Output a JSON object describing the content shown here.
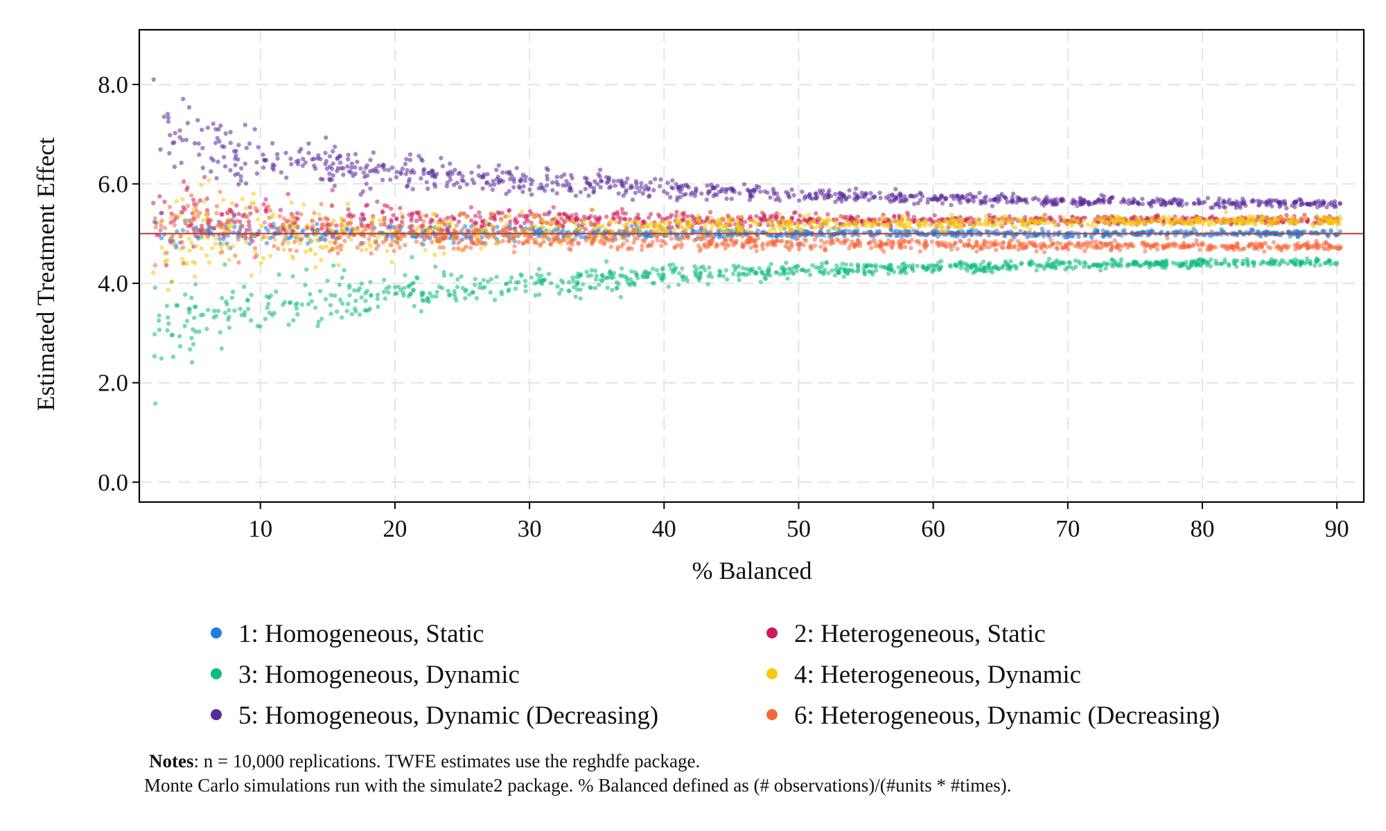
{
  "chart_data": {
    "type": "scatter",
    "title": "",
    "xlabel": "% Balanced",
    "ylabel": "Estimated Treatment Effect",
    "xlim": [
      1,
      92
    ],
    "ylim": [
      -0.4,
      9.1
    ],
    "x_ticks": [
      10,
      20,
      30,
      40,
      50,
      60,
      70,
      80,
      90
    ],
    "x_tick_labels": [
      "10",
      "20",
      "30",
      "40",
      "50",
      "60",
      "70",
      "80",
      "90"
    ],
    "y_ticks": [
      0,
      2,
      4,
      6,
      8
    ],
    "y_tick_labels": [
      "0.0",
      "2.0",
      "4.0",
      "6.0",
      "8.0"
    ],
    "grid": true,
    "reference_line": {
      "y": 5.0,
      "color": "#c0392b"
    },
    "legend_position": "bottom",
    "x_range_of_points": [
      2,
      90.3
    ],
    "series": [
      {
        "name": "1: Homogeneous, Static",
        "color": "#1f7ee0",
        "center_at_x2": 5.0,
        "center_at_x90": 5.0,
        "spread_at_x2": 0.25,
        "spread_at_x90": 0.03
      },
      {
        "name": "2: Heterogeneous, Static",
        "color": "#cf1b5c",
        "center_at_x2": 5.3,
        "center_at_x90": 5.27,
        "spread_at_x2": 0.45,
        "spread_at_x90": 0.04
      },
      {
        "name": "3: Homogeneous, Dynamic",
        "color": "#0ebc7e",
        "center_at_x2": 2.8,
        "center_at_x90": 4.43,
        "spread_at_x2": 0.65,
        "spread_at_x90": 0.04
      },
      {
        "name": "4: Heterogeneous, Dynamic",
        "color": "#f6c90e",
        "center_at_x2": 4.6,
        "center_at_x90": 5.26,
        "spread_at_x2": 0.75,
        "spread_at_x90": 0.04
      },
      {
        "name": "5: Homogeneous, Dynamic (Decreasing)",
        "color": "#5a2a9c",
        "center_at_x2": 7.3,
        "center_at_x90": 5.6,
        "spread_at_x2": 0.6,
        "spread_at_x90": 0.04
      },
      {
        "name": "6: Heterogeneous, Dynamic (Decreasing)",
        "color": "#f5683b",
        "center_at_x2": 5.3,
        "center_at_x90": 4.74,
        "spread_at_x2": 0.5,
        "spread_at_x90": 0.04
      }
    ]
  },
  "notes": {
    "bold_label": "Notes",
    "line1_rest": ": n = 10,000 replications. TWFE estimates use the reghdfe package.",
    "line2": "Monte Carlo simulations run with the simulate2 package. % Balanced defined as (# observations)/(#units * #times)."
  }
}
